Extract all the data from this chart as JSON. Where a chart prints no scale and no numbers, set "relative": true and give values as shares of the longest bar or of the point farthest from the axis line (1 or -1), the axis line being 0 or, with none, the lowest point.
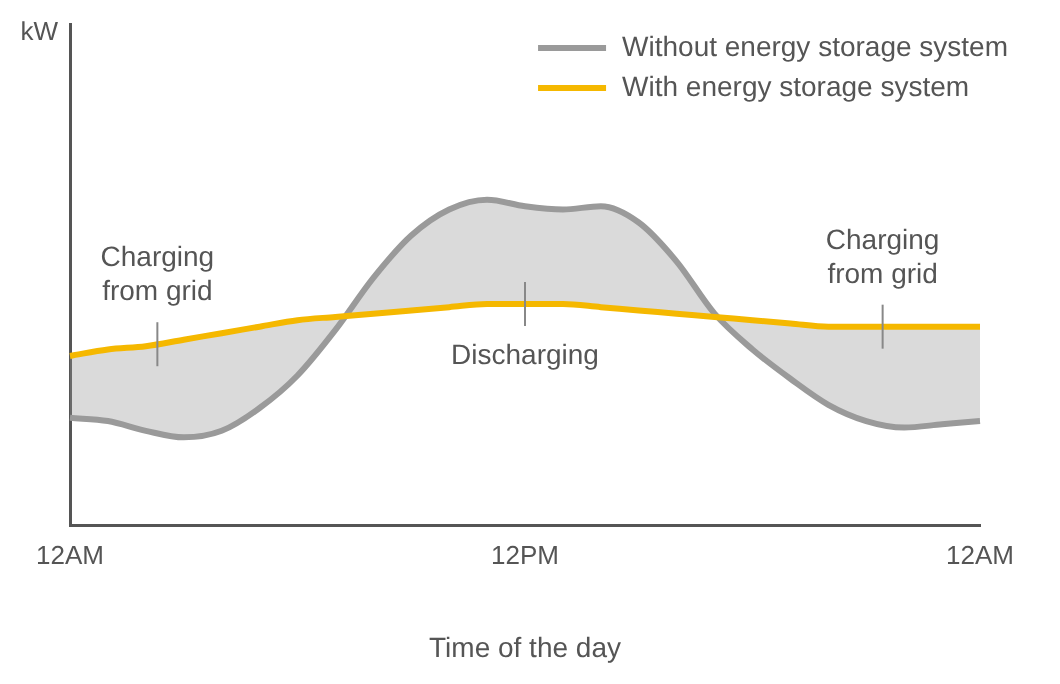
{
  "chart_data": {
    "type": "line",
    "relative": true,
    "xlabel": "Time of the day",
    "categories": [
      "12AM",
      null,
      null,
      null,
      null,
      null,
      null,
      null,
      null,
      null,
      null,
      null,
      "12PM",
      null,
      null,
      null,
      null,
      null,
      null,
      null,
      null,
      null,
      null,
      null,
      "12AM"
    ],
    "grid": false,
    "legend": "top right",
    "marker": "none",
    "line_style": "solid",
    "series": [
      {
        "name": "Without energy storage system",
        "color": "#9a9a9a",
        "values": [
          0.33,
          0.32,
          0.29,
          0.27,
          0.29,
          0.36,
          0.46,
          0.6,
          0.76,
          0.89,
          0.97,
          1.0,
          0.98,
          0.97,
          0.98,
          0.93,
          0.81,
          0.65,
          0.54,
          0.45,
          0.37,
          0.32,
          0.3,
          0.31,
          0.32
        ]
      },
      {
        "name": "With energy storage system",
        "color": "#f5b800",
        "values": [
          0.52,
          0.54,
          0.55,
          0.57,
          0.59,
          0.61,
          0.63,
          0.64,
          0.65,
          0.66,
          0.67,
          0.68,
          0.68,
          0.68,
          0.67,
          0.66,
          0.65,
          0.64,
          0.63,
          0.62,
          0.61,
          0.61,
          0.61,
          0.61,
          0.61
        ]
      }
    ],
    "annotations": [
      "kW",
      "Charging\nfrom grid",
      {
        "text": "Discharging",
        "x": "12PM",
        "y": 0.68
      },
      "Charging\nfrom grid"
    ]
  }
}
